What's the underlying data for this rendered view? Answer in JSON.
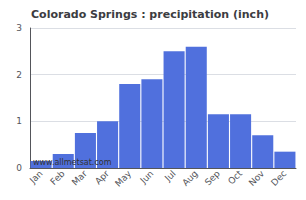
{
  "chart_data": {
    "type": "bar",
    "title": "Colorado Springs : precipitation (inch)",
    "categories": [
      "Jan",
      "Feb",
      "Mar",
      "Apr",
      "May",
      "Jun",
      "Jul",
      "Aug",
      "Sep",
      "Oct",
      "Nov",
      "Dec"
    ],
    "values": [
      0.15,
      0.3,
      0.75,
      1.0,
      1.8,
      1.9,
      2.5,
      2.6,
      1.15,
      1.15,
      0.7,
      0.35
    ],
    "ylim": [
      0,
      3.0
    ],
    "yticks": [
      0,
      1,
      2,
      3
    ],
    "grid": true,
    "annotations": [
      "www.allmetsat.com"
    ]
  }
}
